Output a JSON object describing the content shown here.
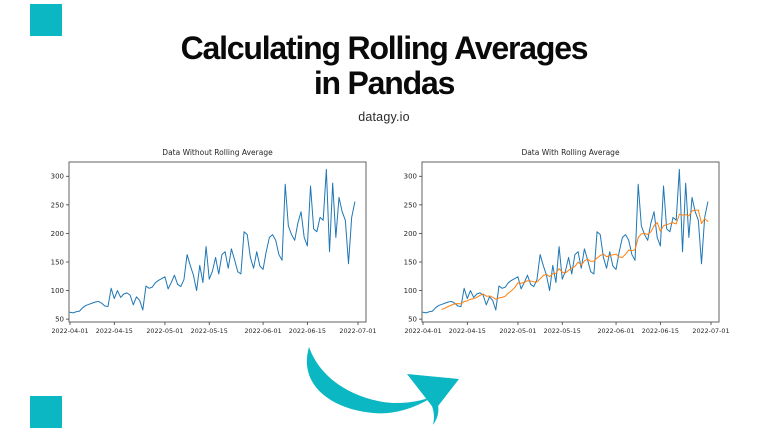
{
  "header": {
    "title_line1": "Calculating Rolling Averages",
    "title_line2": "in Pandas",
    "subtitle": "datagy.io"
  },
  "decor": {
    "accent_color": "#0bb7c3",
    "arrow_icon": "curved-swoosh-arrow-pointing-right",
    "squares": [
      "top-left",
      "bottom-left"
    ]
  },
  "daily_values": [
    62,
    61,
    63,
    64,
    70,
    74,
    76,
    78,
    80,
    81,
    78,
    73,
    72,
    104,
    86,
    100,
    88,
    94,
    96,
    92,
    75,
    89,
    83,
    66,
    108,
    104,
    106,
    114,
    118,
    121,
    124,
    103,
    114,
    127,
    111,
    107,
    119,
    163,
    144,
    127,
    100,
    144,
    114,
    177,
    120,
    134,
    158,
    129,
    163,
    168,
    139,
    173,
    154,
    133,
    129,
    203,
    198,
    158,
    139,
    168,
    143,
    137,
    168,
    193,
    198,
    188,
    163,
    153,
    286,
    213,
    198,
    188,
    218,
    238,
    193,
    178,
    283,
    208,
    203,
    228,
    223,
    312,
    168,
    288,
    193,
    263,
    238,
    223,
    147,
    228,
    255
  ],
  "chart_data": [
    {
      "type": "line",
      "title": "Data Without Rolling Average",
      "x_start_date": "2022-04-01",
      "x_tick_labels": [
        "2022-04-01",
        "2022-04-15",
        "2022-05-01",
        "2022-05-15",
        "2022-06-01",
        "2022-06-15",
        "2022-07-01"
      ],
      "x_tick_days": [
        0,
        14,
        30,
        44,
        61,
        75,
        91
      ],
      "y_ticks": [
        50,
        100,
        150,
        200,
        250,
        300
      ],
      "ylim": [
        45,
        325
      ],
      "xlabel": "",
      "ylabel": "",
      "grid": false,
      "legend": "none",
      "series": [
        {
          "name": "value",
          "color": "#1f77b4",
          "source": "daily_values"
        }
      ]
    },
    {
      "type": "line",
      "title": "Data With Rolling Average",
      "x_start_date": "2022-04-01",
      "x_tick_labels": [
        "2022-04-01",
        "2022-04-15",
        "2022-05-01",
        "2022-05-15",
        "2022-06-01",
        "2022-06-15",
        "2022-07-01"
      ],
      "x_tick_days": [
        0,
        14,
        30,
        44,
        61,
        75,
        91
      ],
      "y_ticks": [
        50,
        100,
        150,
        200,
        250,
        300
      ],
      "ylim": [
        45,
        325
      ],
      "xlabel": "",
      "ylabel": "",
      "grid": false,
      "legend": "none",
      "series": [
        {
          "name": "value",
          "color": "#1f77b4",
          "source": "daily_values"
        },
        {
          "name": "7-day rolling average",
          "color": "#ff7f0e",
          "source": "daily_values",
          "rolling_window": 7
        }
      ]
    }
  ]
}
